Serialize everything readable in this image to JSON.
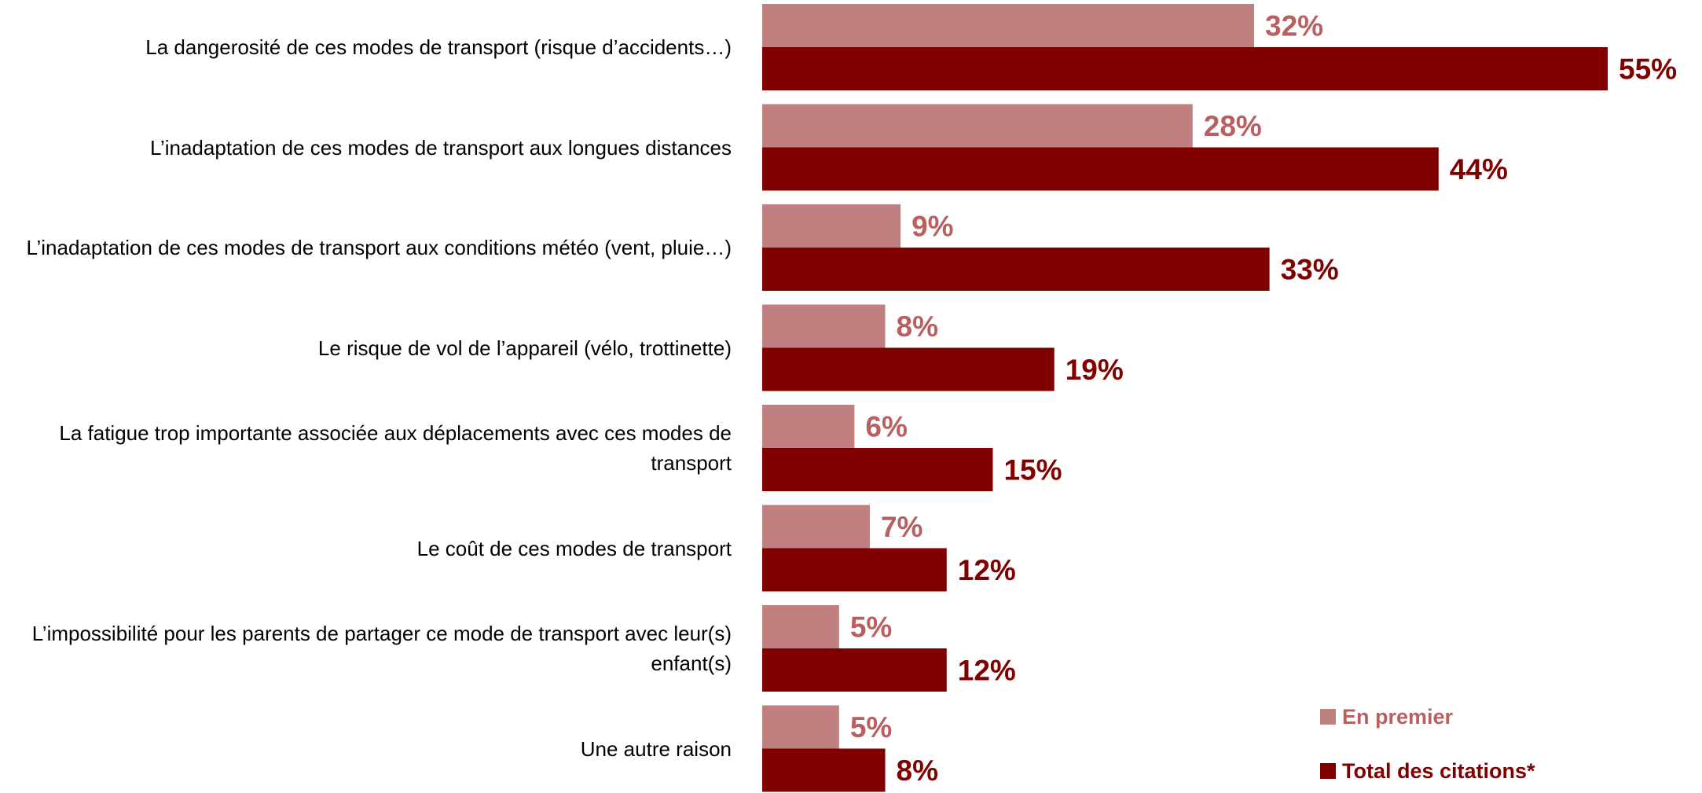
{
  "chart_data": {
    "type": "bar",
    "orientation": "horizontal",
    "categories": [
      "La dangerosité de ces modes de transport (risque d’accidents…)",
      "L’inadaptation de ces modes de transport aux longues distances",
      "L’inadaptation de ces modes de transport aux conditions météo (vent, pluie…)",
      "Le risque de vol de l’appareil (vélo, trottinette)",
      "La fatigue trop importante associée aux déplacements avec ces modes de transport",
      "Le coût de ces modes de transport",
      "L’impossibilité pour les parents de partager ce mode de transport avec leur(s) enfant(s)",
      "Une autre raison"
    ],
    "series": [
      {
        "name": "En premier",
        "color": "#c08080",
        "label_color": "#b85f5f",
        "values": [
          32,
          28,
          9,
          8,
          6,
          7,
          5,
          5
        ],
        "value_labels": [
          "32%",
          "28%",
          "9%",
          "8%",
          "6%",
          "7%",
          "5%",
          "5%"
        ]
      },
      {
        "name": "Total des citations*",
        "color": "#800000",
        "label_color": "#800000",
        "values": [
          55,
          44,
          33,
          19,
          15,
          12,
          12,
          8
        ],
        "value_labels": [
          "55%",
          "44%",
          "33%",
          "19%",
          "15%",
          "12%",
          "12%",
          "8%"
        ]
      }
    ],
    "legend": "lower right"
  }
}
